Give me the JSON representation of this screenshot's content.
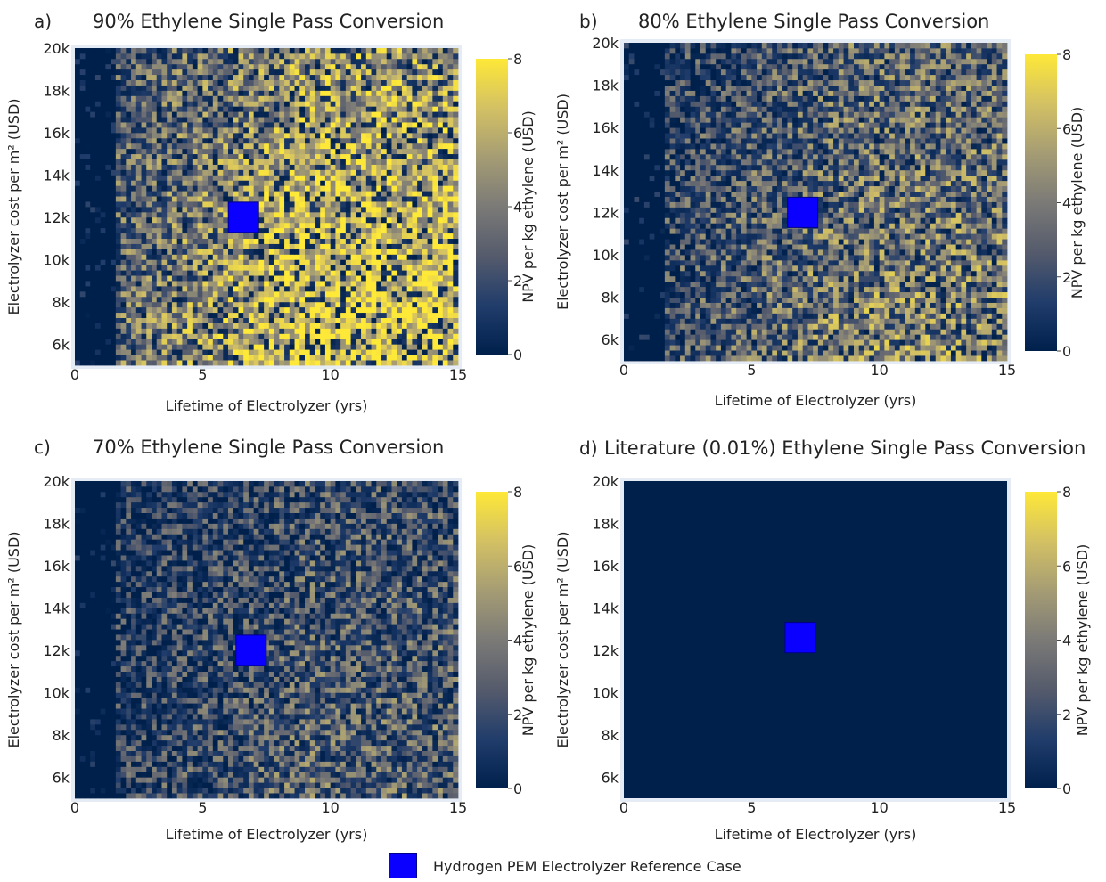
{
  "legend": {
    "reference_label": "Hydrogen PEM Electrolyzer Reference Case",
    "reference_color": "#0a00ff"
  },
  "colorscale": [
    "#00204c",
    "#213d6b",
    "#555b6c",
    "#7b7a77",
    "#a59c74",
    "#d3c164",
    "#fee838"
  ],
  "chart_data": [
    {
      "type": "heatmap",
      "panel_label": "a)",
      "title": "90% Ethylene Single Pass Conversion",
      "xlabel": "Lifetime of Electrolyzer (yrs)",
      "ylabel": "Electrolyzer cost per m² (USD)",
      "xlim": [
        0,
        15
      ],
      "ylim": [
        5000,
        20000
      ],
      "xticks": [
        0,
        5,
        10,
        15
      ],
      "xtick_labels": [
        "0",
        "5",
        "10",
        "15"
      ],
      "yticks": [
        6000,
        8000,
        10000,
        12000,
        14000,
        16000,
        18000,
        20000
      ],
      "ytick_labels": [
        "6k",
        "8k",
        "10k",
        "12k",
        "14k",
        "16k",
        "18k",
        "20k"
      ],
      "colorbar": {
        "label": "NPV per kg ethylene (USD)",
        "range": [
          0,
          8
        ],
        "ticks": [
          "0",
          "2",
          "4",
          "6",
          "8"
        ]
      },
      "grid": {
        "x_bins": 75,
        "y_bins": 60
      },
      "mean_npv": 5.6,
      "reference_case": {
        "lifetime_yrs": 6.6,
        "cost_usd": 12000
      }
    },
    {
      "type": "heatmap",
      "panel_label": "b)",
      "title": "80% Ethylene Single Pass Conversion",
      "xlabel": "Lifetime of Electrolyzer (yrs)",
      "ylabel": "Electrolyzer cost per m² (USD)",
      "xlim": [
        0,
        15
      ],
      "ylim": [
        5000,
        20000
      ],
      "xticks": [
        0,
        5,
        10,
        15
      ],
      "xtick_labels": [
        "0",
        "5",
        "10",
        "15"
      ],
      "yticks": [
        6000,
        8000,
        10000,
        12000,
        14000,
        16000,
        18000,
        20000
      ],
      "ytick_labels": [
        "6k",
        "8k",
        "10k",
        "12k",
        "14k",
        "16k",
        "18k",
        "20k"
      ],
      "colorbar": {
        "label": "NPV per kg ethylene (USD)",
        "range": [
          0,
          8
        ],
        "ticks": [
          "0",
          "2",
          "4",
          "6",
          "8"
        ]
      },
      "grid": {
        "x_bins": 75,
        "y_bins": 60
      },
      "mean_npv": 3.6,
      "reference_case": {
        "lifetime_yrs": 7.0,
        "cost_usd": 12000
      }
    },
    {
      "type": "heatmap",
      "panel_label": "c)",
      "title": "70% Ethylene Single Pass Conversion",
      "xlabel": "Lifetime of Electrolyzer (yrs)",
      "ylabel": "Electrolyzer cost per m² (USD)",
      "xlim": [
        0,
        15
      ],
      "ylim": [
        5000,
        20000
      ],
      "xticks": [
        0,
        5,
        10,
        15
      ],
      "xtick_labels": [
        "0",
        "5",
        "10",
        "15"
      ],
      "yticks": [
        6000,
        8000,
        10000,
        12000,
        14000,
        16000,
        18000,
        20000
      ],
      "ytick_labels": [
        "6k",
        "8k",
        "10k",
        "12k",
        "14k",
        "16k",
        "18k",
        "20k"
      ],
      "colorbar": {
        "label": "NPV per kg ethylene (USD)",
        "range": [
          0,
          8
        ],
        "ticks": [
          "0",
          "2",
          "4",
          "6",
          "8"
        ]
      },
      "grid": {
        "x_bins": 75,
        "y_bins": 60
      },
      "mean_npv": 2.4,
      "reference_case": {
        "lifetime_yrs": 6.9,
        "cost_usd": 12000
      }
    },
    {
      "type": "heatmap",
      "panel_label": "d)",
      "title": "Literature (0.01%) Ethylene Single Pass Conversion",
      "xlabel": "Lifetime of Electrolyzer (yrs)",
      "ylabel": "Electrolyzer cost per m² (USD)",
      "xlim": [
        0,
        15
      ],
      "ylim": [
        5000,
        20000
      ],
      "xticks": [
        0,
        5,
        10,
        15
      ],
      "xtick_labels": [
        "0",
        "5",
        "10",
        "15"
      ],
      "yticks": [
        6000,
        8000,
        10000,
        12000,
        14000,
        16000,
        18000,
        20000
      ],
      "ytick_labels": [
        "6k",
        "8k",
        "10k",
        "12k",
        "14k",
        "16k",
        "18k",
        "20k"
      ],
      "colorbar": {
        "label": "NPV per kg ethylene (USD)",
        "range": [
          0,
          8
        ],
        "ticks": [
          "0",
          "2",
          "4",
          "6",
          "8"
        ]
      },
      "grid": {
        "x_bins": 75,
        "y_bins": 60
      },
      "mean_npv": 0,
      "reference_case": {
        "lifetime_yrs": 6.9,
        "cost_usd": 12600
      }
    }
  ]
}
